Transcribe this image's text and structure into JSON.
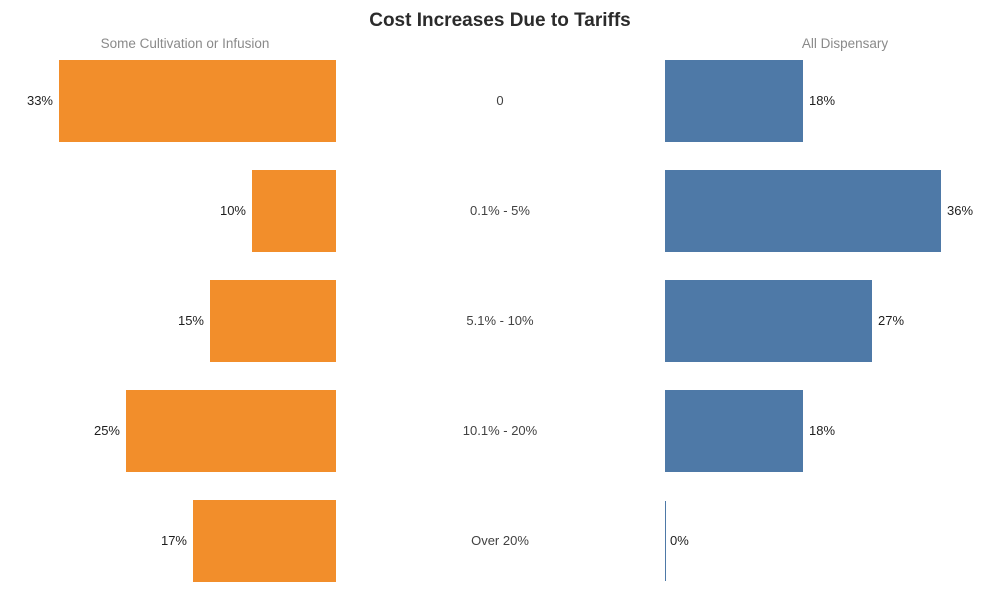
{
  "title": "Cost Increases Due to Tariffs",
  "colors": {
    "left_bar": "#F28E2B",
    "right_bar": "#4E79A7",
    "title_text": "#2B2B2B",
    "header_text": "#8A8A8A",
    "value_label_text": "#1E1E1E",
    "category_label_text": "#424242",
    "zero_axis_line": "#4E79A7",
    "background": "#FFFFFF"
  },
  "chart_data": {
    "type": "bar",
    "variant": "diverging-butterfly",
    "orientation": "horizontal",
    "title": "Cost Increases Due to Tariffs",
    "categories": [
      "0",
      "0.1% - 5%",
      "5.1% - 10%",
      "10.1% - 20%",
      "Over 20%"
    ],
    "series": [
      {
        "name": "Some Cultivation or Infusion",
        "side": "left",
        "color": "#F28E2B",
        "values": [
          33,
          10,
          15,
          25,
          17
        ],
        "labels": [
          "33%",
          "10%",
          "15%",
          "25%",
          "17%"
        ],
        "axis_max": 33
      },
      {
        "name": "All Dispensary",
        "side": "right",
        "color": "#4E79A7",
        "values": [
          18,
          36,
          27,
          18,
          0
        ],
        "labels": [
          "18%",
          "36%",
          "27%",
          "18%",
          "0%"
        ],
        "axis_max": 36
      }
    ],
    "legend": "none",
    "grid": false,
    "value_label_position": "outside-end"
  }
}
